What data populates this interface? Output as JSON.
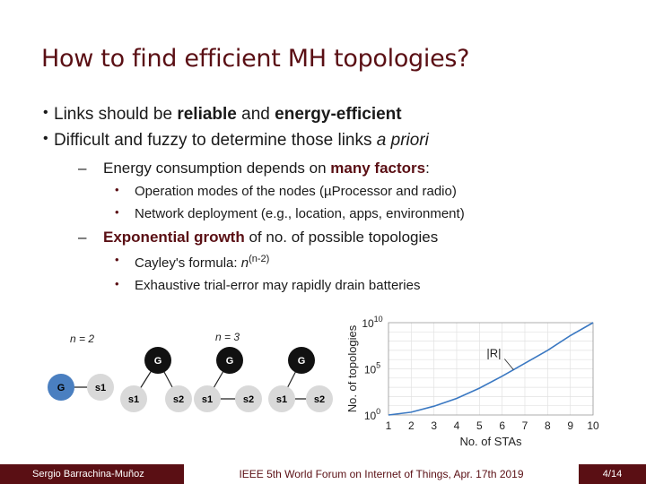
{
  "slide": {
    "title": "How to find efficient MH topologies?",
    "bullets": [
      {
        "pre": "Links should be ",
        "b1": "reliable",
        "mid": " and ",
        "b2": "energy-efficient"
      },
      {
        "pre": "Difficult and fuzzy to determine those links ",
        "it": "a priori"
      }
    ],
    "sub1": {
      "pre": "Energy consumption depends on ",
      "bold": "many factors",
      "post": ":",
      "items": [
        "Operation modes of the nodes (µProcessor and radio)",
        "Network deployment (e.g., location, apps, environment)"
      ]
    },
    "sub2": {
      "bold": "Exponential growth",
      "post": " of no. of possible topologies",
      "items": [
        {
          "pre": "Cayley's formula: ",
          "base": "n",
          "exp": "(n-2)"
        },
        {
          "text": "Exhaustive trial-error may rapidly drain batteries"
        }
      ]
    }
  },
  "diagram": {
    "label_n2": "n = 2",
    "label_n3": "n = 3",
    "node_G": "G",
    "node_s1": "s1",
    "node_s2": "s2",
    "colors": {
      "gateway": "#111111",
      "selected": "#4a7fc0",
      "station": "#d9d9d9"
    }
  },
  "chart_data": {
    "type": "line",
    "xlabel": "No. of STAs",
    "ylabel": "No. of topologies",
    "x_ticks": [
      "1",
      "2",
      "3",
      "4",
      "5",
      "6",
      "7",
      "8",
      "9",
      "10"
    ],
    "y_ticks": [
      "10^0",
      "10^5",
      "10^10"
    ],
    "y_scale": "log",
    "xlim": [
      1,
      10
    ],
    "ylim_log10": [
      0,
      10
    ],
    "grid": true,
    "annotation": "|R|",
    "series": [
      {
        "name": "",
        "x": [
          1,
          2,
          3,
          4,
          5,
          6,
          7,
          8,
          9,
          10
        ],
        "y_log10": [
          0,
          0.3,
          0.95,
          1.8,
          2.9,
          4.2,
          5.6,
          7.0,
          8.6,
          10.0
        ]
      }
    ],
    "color": "#3a78c2"
  },
  "footer": {
    "author": "Sergio Barrachina-Muñoz",
    "venue": "IEEE 5th World Forum on Internet of Things, Apr. 17th 2019",
    "page": "4/14"
  }
}
